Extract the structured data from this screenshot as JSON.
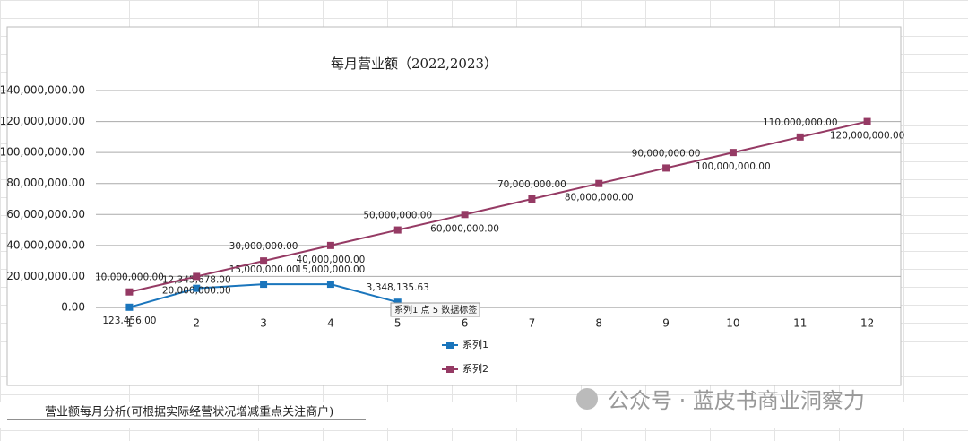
{
  "chart_data": {
    "type": "line",
    "title": "每月营业额（2022,2023）",
    "x": [
      1,
      2,
      3,
      4,
      5,
      6,
      7,
      8,
      9,
      10,
      11,
      12
    ],
    "series": [
      {
        "name": "系列1",
        "color": "#1a75bc",
        "values": [
          123456,
          12345678,
          15000000,
          15000000,
          3348135.63,
          null,
          null,
          null,
          null,
          null,
          null,
          null
        ],
        "value_labels": [
          "123,456.00",
          "12,345,678.00",
          "15,000,000.00",
          "15,000,000.00",
          "3,348,135.63",
          null,
          null,
          null,
          null,
          null,
          null,
          null
        ]
      },
      {
        "name": "系列2",
        "color": "#953a64",
        "values": [
          10000000,
          20000000,
          30000000,
          40000000,
          50000000,
          60000000,
          70000000,
          80000000,
          90000000,
          100000000,
          110000000,
          120000000
        ],
        "value_labels": [
          "10,000,000.00",
          "20,000,000.00",
          "30,000,000.00",
          "40,000,000.00",
          "50,000,000.00",
          "60,000,000.00",
          "70,000,000.00",
          "80,000,000.00",
          "90,000,000.00",
          "100,000,000.00",
          "110,000,000.00",
          "120,000,000.00"
        ]
      }
    ],
    "xlim": [
      0.5,
      12.5
    ],
    "ylim": [
      0,
      140000000
    ],
    "yticks": [
      {
        "value": 0,
        "label": "0.00"
      },
      {
        "value": 20000000,
        "label": "20,000,000.00"
      },
      {
        "value": 40000000,
        "label": "40,000,000.00"
      },
      {
        "value": 60000000,
        "label": "60,000,000.00"
      },
      {
        "value": 80000000,
        "label": "80,000,000.00"
      },
      {
        "value": 100000000,
        "label": "100,000,000.00"
      },
      {
        "value": 120000000,
        "label": "120,000,000.00"
      },
      {
        "value": 140000000,
        "label": "140,000,000.00"
      }
    ],
    "grid": true,
    "annotation": "系列1 点 5 数据标签"
  },
  "sheet_caption": "营业额每月分析(可根据实际经营状况增减重点关注商户)",
  "watermark": "公众号 · 蓝皮书商业洞察力"
}
